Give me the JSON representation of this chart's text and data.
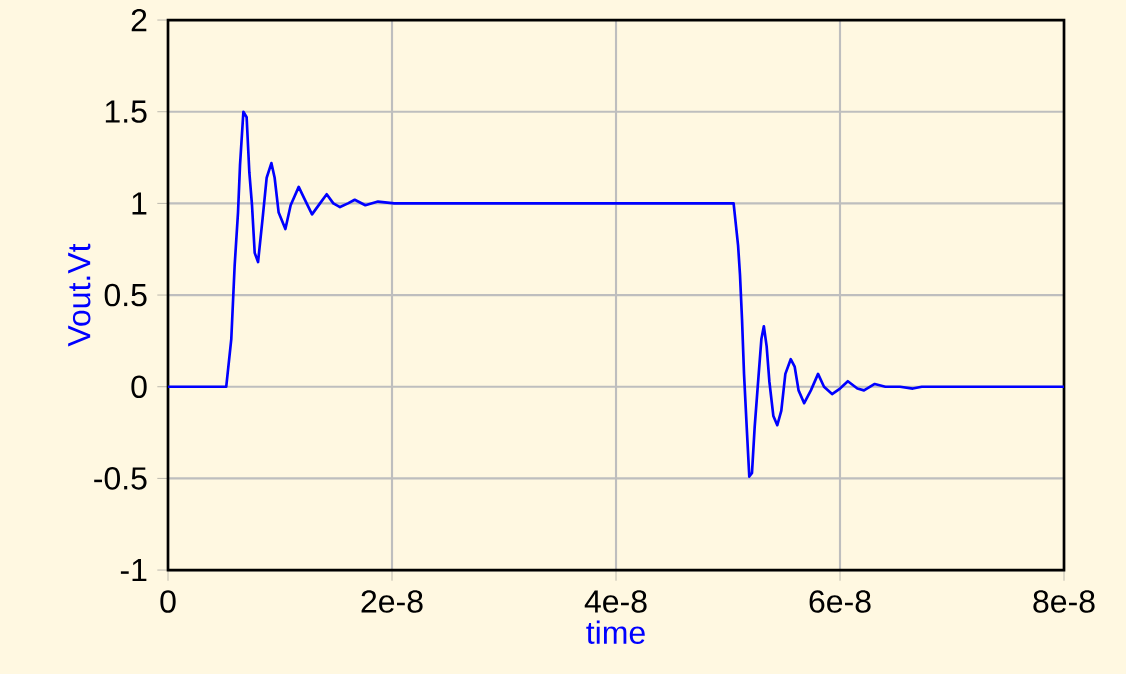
{
  "chart_data": {
    "type": "line",
    "xlabel": "time",
    "ylabel": "Vout.Vt",
    "xlim": [
      0,
      8e-08
    ],
    "ylim": [
      -1,
      2
    ],
    "xticks": [
      0,
      {
        "value": 2e-08,
        "label": "2e-8"
      },
      {
        "value": 4e-08,
        "label": "4e-8"
      },
      {
        "value": 6e-08,
        "label": "6e-8"
      },
      {
        "value": 8e-08,
        "label": "8e-8"
      }
    ],
    "yticks": [
      -1,
      -0.5,
      0,
      0.5,
      1,
      1.5,
      2
    ],
    "grid": true,
    "series": [
      {
        "color": "#0000ff",
        "x": [
          0,
          5.2e-09,
          5.65e-09,
          5.95e-09,
          6.25e-09,
          6.43e-09,
          6.73e-09,
          7.02e-09,
          7.26e-09,
          7.5e-09,
          7.74e-09,
          8.04e-09,
          8.45e-09,
          8.81e-09,
          9.23e-09,
          9.52e-09,
          9.88e-09,
          1.048e-08,
          1.095e-08,
          1.167e-08,
          1.214e-08,
          1.286e-08,
          1.357e-08,
          1.417e-08,
          1.476e-08,
          1.536e-08,
          1.607e-08,
          1.667e-08,
          1.762e-08,
          1.875e-08,
          2.02e-08,
          5.05e-08,
          5.09e-08,
          5.107e-08,
          5.125e-08,
          5.143e-08,
          5.167e-08,
          5.19e-08,
          5.214e-08,
          5.238e-08,
          5.274e-08,
          5.298e-08,
          5.32e-08,
          5.345e-08,
          5.369e-08,
          5.405e-08,
          5.44e-08,
          5.476e-08,
          5.512e-08,
          5.56e-08,
          5.595e-08,
          5.63e-08,
          5.68e-08,
          5.74e-08,
          5.804e-08,
          5.857e-08,
          5.929e-08,
          6e-08,
          6.07e-08,
          6.155e-08,
          6.214e-08,
          6.31e-08,
          6.405e-08,
          6.536e-08,
          6.65e-08,
          6.73e-08,
          8e-08
        ],
        "values": [
          0,
          0,
          0.26,
          0.66,
          0.95,
          1.21,
          1.5,
          1.47,
          1.17,
          0.99,
          0.73,
          0.68,
          0.92,
          1.14,
          1.22,
          1.14,
          0.95,
          0.86,
          0.99,
          1.09,
          1.03,
          0.94,
          1.0,
          1.05,
          1.0,
          0.98,
          1.0,
          1.02,
          0.99,
          1.01,
          1.0,
          1.0,
          0.77,
          0.61,
          0.37,
          0.07,
          -0.22,
          -0.49,
          -0.47,
          -0.22,
          0.07,
          0.26,
          0.33,
          0.22,
          0.03,
          -0.16,
          -0.21,
          -0.13,
          0.07,
          0.15,
          0.11,
          -0.02,
          -0.09,
          -0.02,
          0.07,
          0.0,
          -0.04,
          -0.01,
          0.03,
          -0.01,
          -0.02,
          0.015,
          0,
          0,
          -0.01,
          0,
          0
        ]
      }
    ]
  }
}
